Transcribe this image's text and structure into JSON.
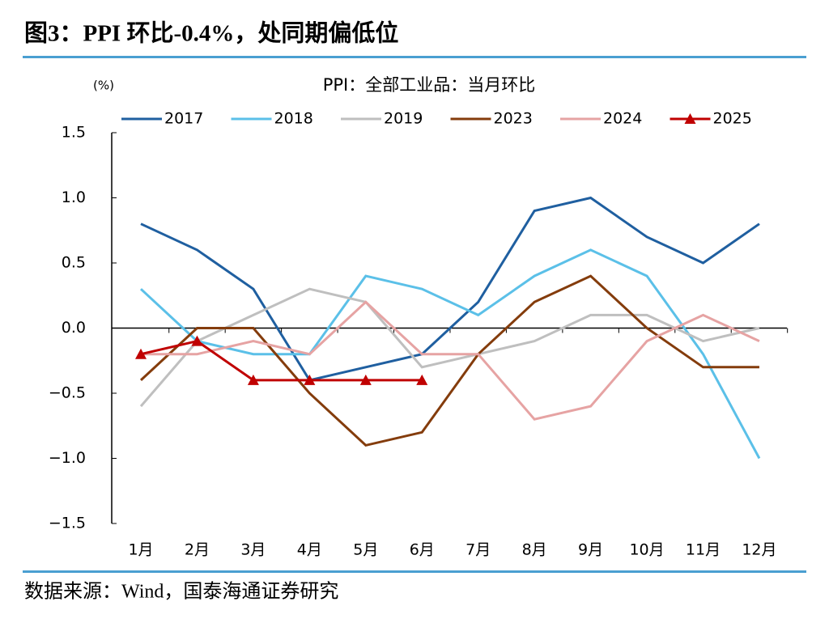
{
  "header": {
    "title": "图3：PPI 环比-0.4%，处同期偏低位"
  },
  "chart_data": {
    "type": "line",
    "title": "PPI：全部工业品：当月环比",
    "y_unit": "(%)",
    "categories": [
      "1月",
      "2月",
      "3月",
      "4月",
      "5月",
      "6月",
      "7月",
      "8月",
      "9月",
      "10月",
      "11月",
      "12月"
    ],
    "series": [
      {
        "name": "2017",
        "color": "#1f5fa0",
        "values": [
          0.8,
          0.6,
          0.3,
          -0.4,
          -0.3,
          -0.2,
          0.2,
          0.9,
          1.0,
          0.7,
          0.5,
          0.8
        ]
      },
      {
        "name": "2018",
        "color": "#5bc0e8",
        "values": [
          0.3,
          -0.1,
          -0.2,
          -0.2,
          0.4,
          0.3,
          0.1,
          0.4,
          0.6,
          0.4,
          -0.2,
          -1.0
        ]
      },
      {
        "name": "2019",
        "color": "#bfbfbf",
        "values": [
          -0.6,
          -0.1,
          0.1,
          0.3,
          0.2,
          -0.3,
          -0.2,
          -0.1,
          0.1,
          0.1,
          -0.1,
          0.0
        ]
      },
      {
        "name": "2023",
        "color": "#843c0c",
        "values": [
          -0.4,
          0.0,
          0.0,
          -0.5,
          -0.9,
          -0.8,
          -0.2,
          0.2,
          0.4,
          0.0,
          -0.3,
          -0.3
        ]
      },
      {
        "name": "2024",
        "color": "#e6a3a3",
        "values": [
          -0.2,
          -0.2,
          -0.1,
          -0.2,
          0.2,
          -0.2,
          -0.2,
          -0.7,
          -0.6,
          -0.1,
          0.1,
          -0.1
        ]
      },
      {
        "name": "2025",
        "color": "#c00000",
        "marker": "triangle",
        "values": [
          -0.2,
          -0.1,
          -0.4,
          -0.4,
          -0.4,
          -0.4,
          null,
          null,
          null,
          null,
          null,
          null
        ]
      }
    ],
    "ylim": [
      -1.5,
      1.5
    ],
    "yticks": [
      {
        "value": -1.5,
        "label": "−1.5"
      },
      {
        "value": -1.0,
        "label": "−1.0"
      },
      {
        "value": -0.5,
        "label": "−0.5"
      },
      {
        "value": 0,
        "label": "0.0"
      },
      {
        "value": 0.5,
        "label": "0.5"
      },
      {
        "value": 1.0,
        "label": "1.0"
      },
      1.5
    ],
    "grid": false,
    "legend": "top"
  },
  "footer": {
    "source": "数据来源：Wind，国泰海通证券研究"
  }
}
